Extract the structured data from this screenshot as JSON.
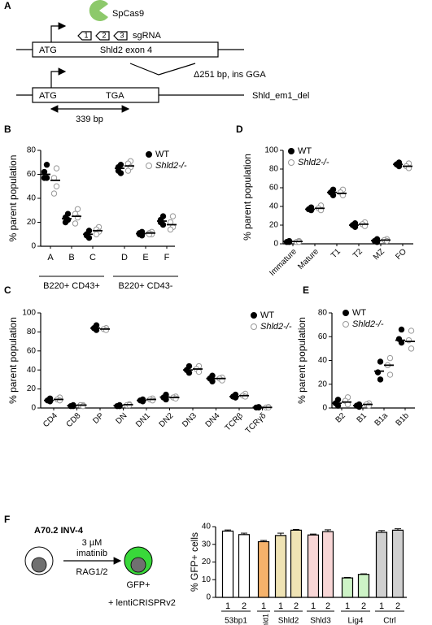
{
  "panel_labels": [
    "A",
    "B",
    "C",
    "D",
    "E",
    "F"
  ],
  "diagram_a": {
    "enzyme": "SpCas9",
    "sgrna_numbers": [
      "1",
      "2",
      "3"
    ],
    "sgrna_label": "sgRNA",
    "wt_start": "ATG",
    "wt_exon": "Shld2 exon 4",
    "deletion": "Δ251 bp, ins GGA",
    "mut_start": "ATG",
    "mut_stop": "TGA",
    "allele": "Shld_em1_del",
    "length": "339 bp"
  },
  "diagram_f": {
    "cell_line": "A70.2 INV-4",
    "dose": "3 µM",
    "drug": "imatinib",
    "enzyme": "RAG1/2",
    "readout": "GFP+",
    "vector": "+ lentiCRISPRv2"
  },
  "chart_data": [
    {
      "type": "dot",
      "ylabel": "% parent population",
      "ylim": [
        0,
        80
      ],
      "yticks": [
        0,
        20,
        40,
        60,
        80
      ],
      "groups": [
        {
          "label": "B220+ CD43+",
          "categories": [
            "A",
            "B",
            "C"
          ]
        },
        {
          "label": "B220+ CD43-",
          "categories": [
            "D",
            "E",
            "F"
          ]
        }
      ],
      "series": [
        {
          "name": "WT",
          "color": "#000000",
          "marker": "filled",
          "values": [
            [
              68,
              62,
              57,
              57
            ],
            [
              27,
              24,
              22,
              20
            ],
            [
              13,
              10,
              7,
              9
            ],
            [
              68,
              66,
              61,
              63
            ],
            [
              12,
              10,
              9,
              11
            ],
            [
              25,
              22,
              18,
              20
            ]
          ],
          "means": [
            60,
            23,
            10,
            65,
            10.5,
            21
          ]
        },
        {
          "name": "Shld2-/-",
          "color": "#999999",
          "marker": "open",
          "values": [
            [
              65,
              57,
              50,
              44
            ],
            [
              31,
              27,
              24,
              19
            ],
            [
              16,
              14,
              12,
              10
            ],
            [
              71,
              69,
              66,
              63
            ],
            [
              12,
              11,
              10,
              10
            ],
            [
              25,
              20,
              16,
              14
            ]
          ],
          "means": [
            55,
            25,
            13,
            67,
            11,
            18
          ]
        }
      ]
    },
    {
      "type": "dot",
      "ylabel": "% parent population",
      "ylim": [
        0,
        100
      ],
      "yticks": [
        0,
        20,
        40,
        60,
        80,
        100
      ],
      "categories": [
        "CD4",
        "CD8",
        "DP",
        "DN",
        "DN1",
        "DN2",
        "DN3",
        "DN4",
        "TCRβ",
        "TCRγδ"
      ],
      "series": [
        {
          "name": "WT",
          "color": "#000000",
          "marker": "filled",
          "values": [
            [
              10,
              8,
              7
            ],
            [
              3,
              2,
              2
            ],
            [
              87,
              84,
              82
            ],
            [
              3,
              2,
              2
            ],
            [
              9,
              8,
              7
            ],
            [
              14,
              11,
              9
            ],
            [
              44,
              40,
              37
            ],
            [
              34,
              31,
              28
            ],
            [
              14,
              12,
              11
            ],
            [
              1,
              0.5,
              0.5
            ]
          ],
          "means": [
            8,
            2.5,
            84,
            2.5,
            8,
            11.5,
            40,
            31,
            12,
            0.7
          ]
        },
        {
          "name": "Shld2-/-",
          "color": "#999999",
          "marker": "open",
          "values": [
            [
              11,
              9,
              8
            ],
            [
              3,
              3,
              2
            ],
            [
              84,
              83,
              82
            ],
            [
              4,
              3,
              3
            ],
            [
              10,
              9,
              8
            ],
            [
              12,
              11,
              10
            ],
            [
              44,
              41,
              38
            ],
            [
              32,
              31,
              29
            ],
            [
              15,
              13,
              12
            ],
            [
              1,
              0.5,
              0.5
            ]
          ],
          "means": [
            9,
            3,
            83,
            3.5,
            9,
            11,
            41,
            31,
            13,
            0.6
          ]
        }
      ]
    },
    {
      "type": "dot",
      "ylabel": "% parent population",
      "ylim": [
        0,
        100
      ],
      "yticks": [
        0,
        20,
        40,
        60,
        80,
        100
      ],
      "categories": [
        "Immature",
        "Mature",
        "T1",
        "T2",
        "MZ",
        "FO"
      ],
      "series": [
        {
          "name": "WT",
          "color": "#000000",
          "marker": "filled",
          "values": [
            [
              3,
              2,
              2
            ],
            [
              39,
              37,
              36
            ],
            [
              58,
              55,
              52
            ],
            [
              22,
              20,
              18
            ],
            [
              5,
              3,
              2
            ],
            [
              87,
              85,
              83
            ]
          ],
          "means": [
            2.5,
            37,
            55,
            20,
            3.5,
            85
          ]
        },
        {
          "name": "Shld2-/-",
          "color": "#999999",
          "marker": "open",
          "values": [
            [
              3,
              2,
              2
            ],
            [
              41,
              38,
              36
            ],
            [
              58,
              55,
              52
            ],
            [
              23,
              21,
              19
            ],
            [
              5,
              4,
              3
            ],
            [
              86,
              83,
              81
            ]
          ],
          "means": [
            2.5,
            38,
            54,
            21,
            4,
            83
          ]
        }
      ]
    },
    {
      "type": "dot",
      "ylabel": "% parent population",
      "ylim": [
        0,
        80
      ],
      "yticks": [
        0,
        20,
        40,
        60,
        80
      ],
      "categories": [
        "B2",
        "B1",
        "B1a",
        "B1b"
      ],
      "series": [
        {
          "name": "WT",
          "color": "#000000",
          "marker": "filled",
          "values": [
            [
              7,
              4,
              2
            ],
            [
              3,
              2,
              1
            ],
            [
              39,
              30,
              24
            ],
            [
              66,
              58,
              55
            ]
          ],
          "means": [
            4,
            2,
            31,
            57
          ]
        },
        {
          "name": "Shld2-/-",
          "color": "#999999",
          "marker": "open",
          "values": [
            [
              9,
              6,
              3
            ],
            [
              4,
              3,
              2
            ],
            [
              42,
              36,
              28
            ],
            [
              65,
              57,
              50
            ]
          ],
          "means": [
            5,
            3,
            36,
            56
          ]
        }
      ]
    },
    {
      "type": "bar",
      "ylabel": "% GFP+ cells",
      "ylim": [
        0,
        40
      ],
      "yticks": [
        0,
        10,
        20,
        30,
        40
      ],
      "groups": [
        {
          "label": "53bp1",
          "categories": [
            "1",
            "2"
          ],
          "values": [
            37.5,
            35.5
          ],
          "errors": [
            0.6,
            0.8
          ],
          "colors": [
            "#ffffff",
            "#ffffff"
          ]
        },
        {
          "label": "Shld1",
          "categories": [
            "1"
          ],
          "values": [
            31.5
          ],
          "errors": [
            0.7
          ],
          "colors": [
            "#f5b26b"
          ]
        },
        {
          "label": "Shld2",
          "categories": [
            "1",
            "2"
          ],
          "values": [
            35,
            38
          ],
          "errors": [
            1.3,
            0.4
          ],
          "colors": [
            "#efe3b4",
            "#efe3b4"
          ]
        },
        {
          "label": "Shld3",
          "categories": [
            "1",
            "2"
          ],
          "values": [
            35.3,
            37.2
          ],
          "errors": [
            0.5,
            1
          ],
          "colors": [
            "#f8d6d6",
            "#f8d6d6"
          ]
        },
        {
          "label": "Lig4",
          "categories": [
            "1",
            "2"
          ],
          "values": [
            11,
            13
          ],
          "errors": [
            0.3,
            0.3
          ],
          "colors": [
            "#cdf3c6",
            "#cdf3c6"
          ]
        },
        {
          "label": "Ctrl",
          "categories": [
            "1",
            "2"
          ],
          "values": [
            36.8,
            38
          ],
          "errors": [
            1,
            0.8
          ],
          "colors": [
            "#d0d0d0",
            "#d0d0d0"
          ]
        }
      ]
    }
  ]
}
